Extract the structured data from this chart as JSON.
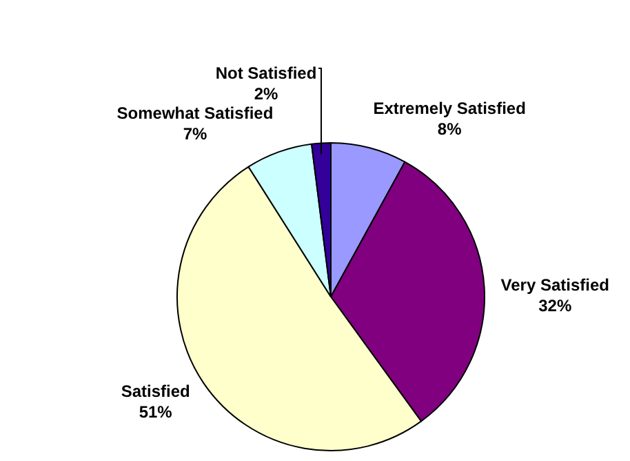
{
  "chart_data": {
    "type": "pie",
    "categories": [
      "Extremely Satisfied",
      "Very Satisfied",
      "Satisfied",
      "Somewhat Satisfied",
      "Not Satisfied"
    ],
    "values": [
      8,
      32,
      51,
      7,
      2
    ],
    "colors": [
      "#9999ff",
      "#800080",
      "#ffffcc",
      "#ccffff",
      "#330099"
    ],
    "value_labels": [
      "8%",
      "32%",
      "51%",
      "7%",
      "2%"
    ],
    "legend": false
  }
}
